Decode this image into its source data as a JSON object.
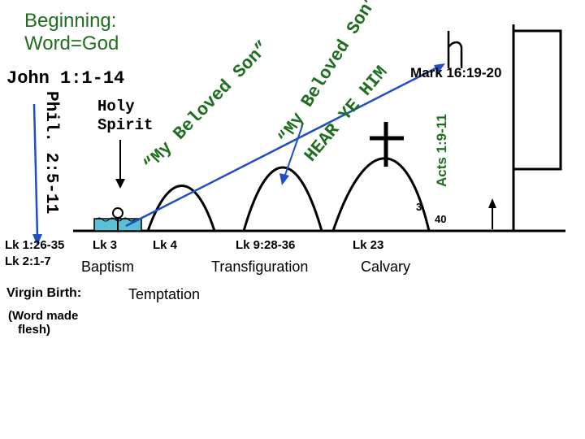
{
  "title_line1": "Beginning:",
  "title_line2": "Word=God",
  "john_ref": "John 1:1-14",
  "phil_ref": "Phil. 2:5-11",
  "holy_spirit_line1": "Holy",
  "holy_spirit_line2": "Spirit",
  "beloved_son_left": "“My Beloved Son”",
  "beloved_son_mid": "“My Beloved Son”",
  "hear_ye_him": "HEAR YE HIM",
  "mark_ref": "Mark 16:19-20",
  "acts_ref": "Acts 1:9-11",
  "days_3": "3",
  "days_40": "40",
  "events": {
    "lk_birth_1": "Lk 1:26-35",
    "lk_birth_2": "Lk 2:1-7",
    "lk_baptism": "Lk 3",
    "baptism": "Baptism",
    "lk_temptation": "Lk 4",
    "temptation": "Temptation",
    "lk_transfig": "Lk 9:28-36",
    "transfiguration": "Transfiguration",
    "lk_calvary": "Lk 23",
    "calvary": "Calvary",
    "virgin_birth": "Virgin Birth:",
    "word_made_flesh": "(Word made flesh)"
  },
  "colors": {
    "ink": "#000000",
    "green": "#1f6e1f",
    "blue_arrow": "#1f4fc2",
    "water": "#5bc0d6"
  }
}
